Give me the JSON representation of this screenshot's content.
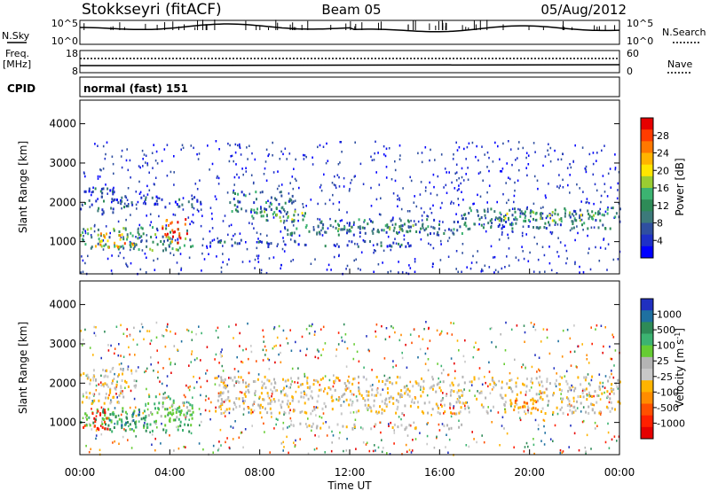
{
  "header": {
    "station": "Stokkseyri (fitACF)",
    "beam": "Beam 05",
    "date": "05/Aug/2012"
  },
  "noise_panel": {
    "left_label": "N.Sky",
    "left_ticks": [
      "10^5",
      "10^0"
    ],
    "right_label": "N.Search",
    "right_ticks": [
      "10^5",
      "10^0"
    ]
  },
  "freq_panel": {
    "left_label_1": "Freq.",
    "left_label_2": "[MHz]",
    "left_ticks": [
      "18",
      "8"
    ],
    "right_label": "Nave",
    "right_ticks": [
      "60",
      "0"
    ]
  },
  "cpid_panel": {
    "label": "CPID",
    "text": "normal (fast) 151"
  },
  "chart_data": [
    {
      "type": "heatmap",
      "name": "power",
      "ylabel": "Slant Range [km]",
      "xlabel": "Time UT",
      "ylim": [
        180,
        4600
      ],
      "yticks": [
        1000,
        2000,
        3000,
        4000
      ],
      "xlim": [
        0,
        24
      ],
      "xticks": [
        "00:00",
        "04:00",
        "08:00",
        "12:00",
        "16:00",
        "20:00",
        "00:00"
      ],
      "colorbar": {
        "label": "Power [dB]",
        "ticks": [
          "28",
          "24",
          "20",
          "16",
          "12",
          "8",
          "4"
        ],
        "colors": [
          "#e60000",
          "#ff3c00",
          "#ff7800",
          "#ffb400",
          "#ffe600",
          "#9acd32",
          "#3cb371",
          "#2e8b57",
          "#3c7a7a",
          "#2f4fa0",
          "#1e30c8",
          "#0000ff"
        ]
      },
      "bands": [
        {
          "t0": 0.0,
          "t1": 1.5,
          "r0": 1700,
          "r1": 2400,
          "level": 2
        },
        {
          "t0": 0.0,
          "t1": 5.0,
          "r0": 800,
          "r1": 1400,
          "level": 4
        },
        {
          "t0": 0.6,
          "t1": 2.5,
          "r0": 850,
          "r1": 1250,
          "level": 8
        },
        {
          "t0": 3.6,
          "t1": 4.8,
          "r0": 1000,
          "r1": 1600,
          "level": 10
        },
        {
          "t0": 1.5,
          "t1": 5.5,
          "r0": 1900,
          "r1": 2200,
          "level": 2
        },
        {
          "t0": 6.5,
          "t1": 9.5,
          "r0": 1700,
          "r1": 2300,
          "level": 3
        },
        {
          "t0": 7.5,
          "t1": 10.0,
          "r0": 1550,
          "r1": 1800,
          "level": 5
        },
        {
          "t0": 9.0,
          "t1": 17.0,
          "r0": 1200,
          "r1": 1600,
          "level": 3
        },
        {
          "t0": 10.0,
          "t1": 16.0,
          "r0": 1300,
          "r1": 1450,
          "level": 4
        },
        {
          "t0": 17.0,
          "t1": 24.0,
          "r0": 1350,
          "r1": 1900,
          "level": 3
        },
        {
          "t0": 18.5,
          "t1": 23.0,
          "r0": 1550,
          "r1": 1800,
          "level": 5
        },
        {
          "t0": 5.5,
          "t1": 8.5,
          "r0": 900,
          "r1": 1100,
          "level": 2
        },
        {
          "t0": 9.5,
          "t1": 15.0,
          "r0": 900,
          "r1": 1050,
          "level": 2
        }
      ]
    },
    {
      "type": "heatmap",
      "name": "velocity",
      "ylabel": "Slant Range [km]",
      "xlabel": "Time UT",
      "ylim": [
        180,
        4600
      ],
      "yticks": [
        1000,
        2000,
        3000,
        4000
      ],
      "xlim": [
        0,
        24
      ],
      "xticks": [
        "00:00",
        "04:00",
        "08:00",
        "12:00",
        "16:00",
        "20:00",
        "00:00"
      ],
      "colorbar": {
        "label": "Velocity [m s^-1]",
        "ticks": [
          "1000",
          "500",
          "100",
          "25",
          "-25",
          "-100",
          "-500",
          "-1000"
        ],
        "colors": [
          "#2030c0",
          "#1e70a0",
          "#2e8b57",
          "#3cb371",
          "#66cc33",
          "#b4b4b4",
          "#c8c8c8",
          "#ffb400",
          "#ff8c00",
          "#ff5000",
          "#ff2000",
          "#e60000"
        ]
      },
      "bands": [
        {
          "t0": 0.0,
          "t1": 2.5,
          "r0": 1500,
          "r1": 2400,
          "level": 6
        },
        {
          "t0": 0.0,
          "t1": 5.0,
          "r0": 800,
          "r1": 1400,
          "level": 3
        },
        {
          "t0": 0.0,
          "t1": 1.2,
          "r0": 850,
          "r1": 1350,
          "level": 10
        },
        {
          "t0": 1.2,
          "t1": 3.0,
          "r0": 900,
          "r1": 1300,
          "level": 2
        },
        {
          "t0": 3.0,
          "t1": 5.0,
          "r0": 1000,
          "r1": 1700,
          "level": 4
        },
        {
          "t0": 6.0,
          "t1": 24.0,
          "r0": 1250,
          "r1": 2200,
          "level": 6
        },
        {
          "t0": 9.0,
          "t1": 17.0,
          "r0": 850,
          "r1": 1000,
          "level": 6
        },
        {
          "t0": 19.0,
          "t1": 20.5,
          "r0": 1350,
          "r1": 1700,
          "level": 8
        }
      ]
    }
  ]
}
